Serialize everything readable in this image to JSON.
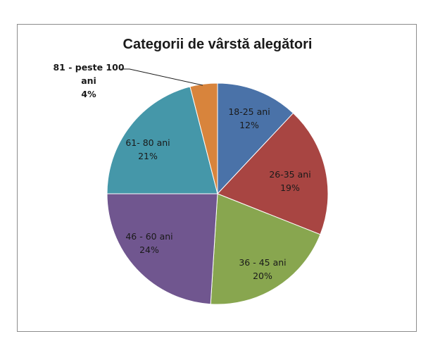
{
  "chart_data": {
    "type": "pie",
    "title": "Categorii de vârstă alegători",
    "categories": [
      "18-25 ani",
      "26-35 ani",
      "36 - 45 ani",
      "46 - 60 ani",
      "61- 80 ani",
      "81 - peste 100 ani"
    ],
    "values": [
      12,
      19,
      20,
      24,
      21,
      4
    ],
    "percent_labels": [
      "12%",
      "19%",
      "20%",
      "24%",
      "21%",
      "4%"
    ],
    "colors": [
      "#4a72a8",
      "#a84542",
      "#88a64f",
      "#70568f",
      "#4597a9",
      "#d8843c"
    ],
    "label_lines": [
      [
        "18-25 ani",
        "12%"
      ],
      [
        "26-35 ani",
        "19%"
      ],
      [
        "36 - 45 ani",
        "20%"
      ],
      [
        "46 - 60 ani",
        "24%"
      ],
      [
        "61- 80 ani",
        "21%"
      ],
      [
        "81 - peste 100",
        "ani",
        "4%"
      ]
    ],
    "legend": "none"
  }
}
